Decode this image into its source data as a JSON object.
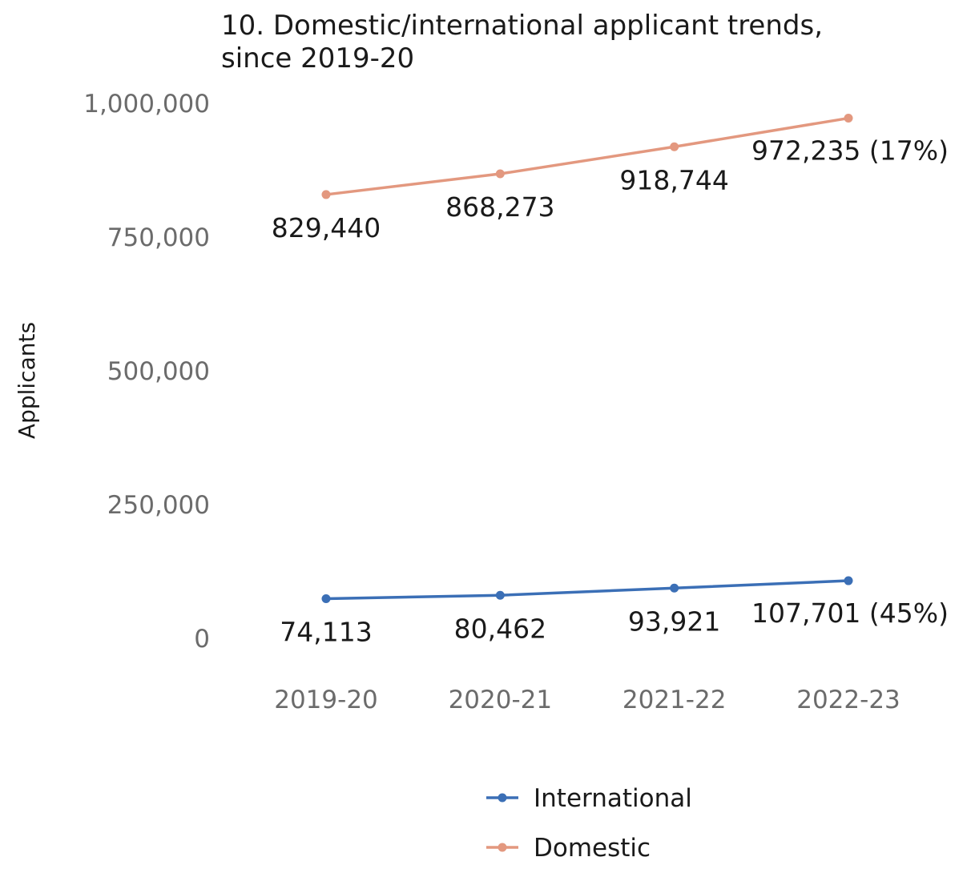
{
  "chart_data": {
    "type": "line",
    "title_lines": [
      "10. Domestic/international applicant trends,",
      "since 2019-20"
    ],
    "xlabel": "",
    "ylabel": "Applicants",
    "categories": [
      "2019-20",
      "2020-21",
      "2021-22",
      "2022-23"
    ],
    "ylim": [
      0,
      1000000
    ],
    "yticks": [
      0,
      250000,
      500000,
      750000,
      1000000
    ],
    "ytick_labels": [
      "0",
      "250,000",
      "500,000",
      "750,000",
      "1,000,000"
    ],
    "grid": false,
    "legend_position": "bottom",
    "series": [
      {
        "name": "International",
        "color": "#3b6fb6",
        "values": [
          74113,
          80462,
          93921,
          107701
        ],
        "labels": [
          "74,113",
          "80,462",
          "93,921",
          "107,701 (45%)"
        ]
      },
      {
        "name": "Domestic",
        "color": "#e3987f",
        "values": [
          829440,
          868273,
          918744,
          972235
        ],
        "labels": [
          "829,440",
          "868,273",
          "918,744",
          "972,235 (17%)"
        ]
      }
    ]
  }
}
